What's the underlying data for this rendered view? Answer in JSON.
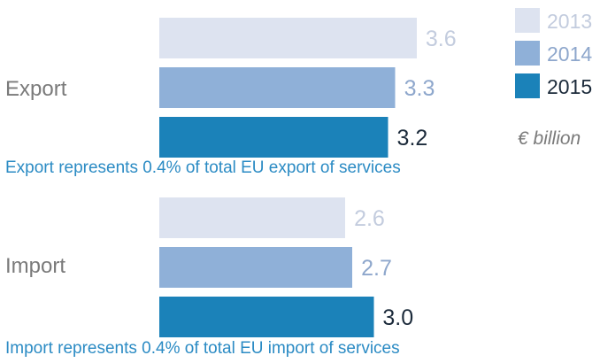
{
  "chart_data": {
    "type": "bar",
    "orientation": "horizontal",
    "unit": "€ billion",
    "categories": [
      "Export",
      "Import"
    ],
    "series": [
      {
        "name": "2013",
        "values": [
          3.6,
          2.6
        ],
        "color": "#dde3f0",
        "label_color": "#c3ccde"
      },
      {
        "name": "2014",
        "values": [
          3.3,
          2.7
        ],
        "color": "#8fb0d8",
        "label_color": "#8ea7cc"
      },
      {
        "name": "2015",
        "values": [
          3.2,
          3.0
        ],
        "color": "#1b82b9",
        "label_color": "#1b2a3a"
      }
    ],
    "value_labels": [
      [
        "3.6",
        "3.3",
        "3.2"
      ],
      [
        "2.6",
        "2.7",
        "3.0"
      ]
    ],
    "notes": [
      "Export represents 0.4% of total EU export of services",
      "Import represents 0.4% of total EU import of services"
    ],
    "legend_position": "top-right",
    "category_label_color": "#7a7a7a",
    "note_color": "#2b8bc4",
    "unit_color": "#7a7a7a"
  }
}
